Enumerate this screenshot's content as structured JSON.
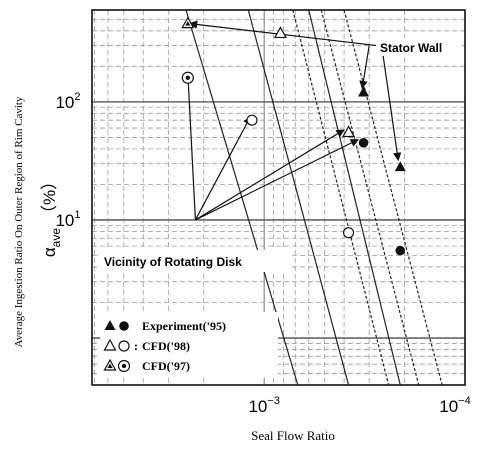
{
  "chart_data": {
    "type": "scatter",
    "xlabel": "Seal Flow Ratio",
    "ylabel_outer": "Average Ingestion Ratio On Outer Region of Rim Cavity",
    "ylabel_inner": "α",
    "ylabel_inner_sub": "ave",
    "ylabel_inner_unit": "（%）",
    "x_scale": "log",
    "x_reversed": true,
    "xlim": [
      0.0072,
      0.0001
    ],
    "ylim": [
      0.4,
      600
    ],
    "y_scale": "log",
    "grid": true,
    "x_ticks": [
      {
        "value": 0.001,
        "base": "10",
        "exp": "−3"
      },
      {
        "value": 0.0001,
        "base": "10",
        "exp": "−4"
      }
    ],
    "y_ticks": [
      {
        "value": 10,
        "base": "10",
        "exp": "1"
      },
      {
        "value": 100,
        "base": "10",
        "exp": "2"
      }
    ],
    "series": [
      {
        "name": "Experiment('95)",
        "marker": "filled-triangle",
        "points": [
          {
            "x": 0.00032,
            "y": 120
          },
          {
            "x": 0.00021,
            "y": 28
          }
        ]
      },
      {
        "name": "Experiment('95)",
        "marker": "filled-circle",
        "points": [
          {
            "x": 0.00032,
            "y": 45
          },
          {
            "x": 0.00021,
            "y": 5.5
          }
        ]
      },
      {
        "name": "CFD('98)",
        "marker": "open-triangle",
        "points": [
          {
            "x": 0.00083,
            "y": 380
          },
          {
            "x": 0.00038,
            "y": 55
          }
        ]
      },
      {
        "name": "CFD('98)",
        "marker": "open-circle",
        "points": [
          {
            "x": 0.00115,
            "y": 70
          },
          {
            "x": 0.00038,
            "y": 7.8
          }
        ]
      },
      {
        "name": "CFD('97)",
        "marker": "dotted-triangle",
        "points": [
          {
            "x": 0.0024,
            "y": 460
          }
        ]
      },
      {
        "name": "CFD('97)",
        "marker": "dotted-circle",
        "points": [
          {
            "x": 0.0024,
            "y": 160
          }
        ]
      }
    ],
    "legend": [
      {
        "label": "Experiment('95)",
        "markers": [
          "filled-triangle",
          "filled-circle"
        ]
      },
      {
        "label": "CFD('98)",
        "markers": [
          "open-triangle",
          "open-circle"
        ],
        "prefix": ":"
      },
      {
        "label": "CFD('97)",
        "markers": [
          "dotted-triangle",
          "dotted-circle"
        ]
      }
    ],
    "legend_position": "bottom-left",
    "annotations": [
      {
        "text": "Stator Wall"
      },
      {
        "text": "Vicinity of Rotating Disk"
      }
    ]
  }
}
